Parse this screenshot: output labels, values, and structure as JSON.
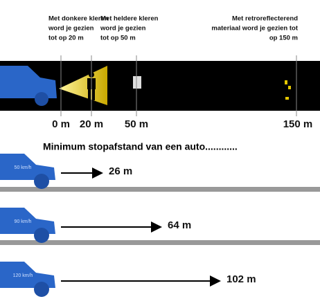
{
  "visibility": {
    "notes": [
      {
        "lines": [
          "Met donkere kleren",
          "word je gezien",
          "tot op 20 m"
        ]
      },
      {
        "lines": [
          "Met heldere kleren",
          "word je gezien",
          "tot op 50 m"
        ]
      },
      {
        "lines": [
          "Met retroreflecterend",
          "materiaal word je gezien tot",
          "op 150 m"
        ]
      }
    ],
    "distances": [
      "0 m",
      "20 m",
      "50 m",
      "150 m"
    ]
  },
  "stopping": {
    "title": "Minimum stopafstand van een auto............",
    "rows": [
      {
        "speed": "50 km/h",
        "distance": "26 m"
      },
      {
        "speed": "90 km/h",
        "distance": "64 m"
      },
      {
        "speed": "120 km/h",
        "distance": "102 m"
      }
    ]
  }
}
